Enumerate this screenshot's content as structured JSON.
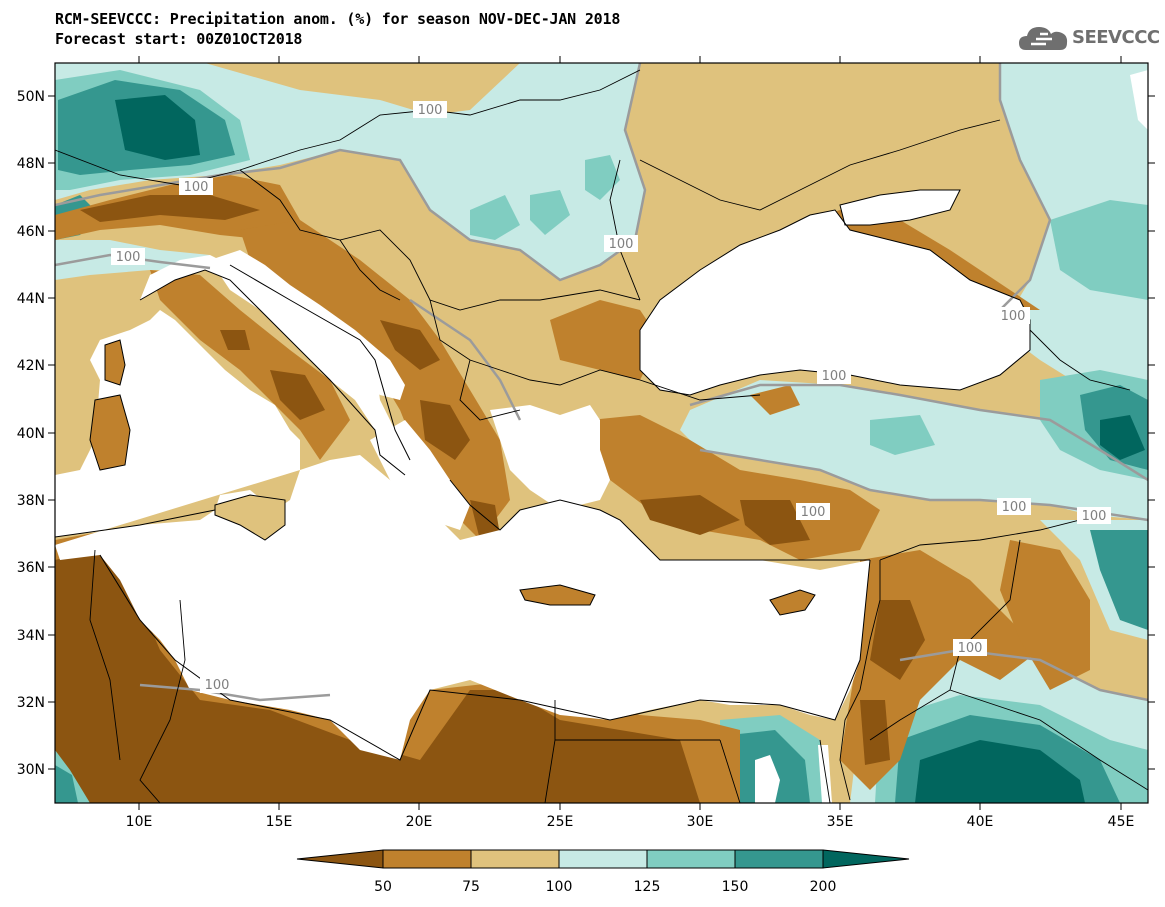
{
  "title": {
    "line1": "RCM-SEEVCCC: Precipitation anom. (%) for season NOV-DEC-JAN 2018",
    "line2": "Forecast start: 00Z01OCT2018"
  },
  "logo": {
    "text": "SEEVCCC",
    "icon": "cloud-icon"
  },
  "map": {
    "lon_range": [
      7,
      46
    ],
    "lat_range": [
      29,
      51
    ],
    "lat_ticks": [
      "50N",
      "48N",
      "46N",
      "44N",
      "42N",
      "40N",
      "38N",
      "36N",
      "34N",
      "32N",
      "30N"
    ],
    "lon_ticks": [
      "10E",
      "15E",
      "20E",
      "25E",
      "30E",
      "35E",
      "40E",
      "45E"
    ],
    "contour_labels": [
      "100",
      "100",
      "100",
      "100",
      "100",
      "100",
      "100",
      "100",
      "100",
      "100",
      "100"
    ],
    "colors": {
      "below_50": "#8c5511",
      "c50_75": "#bf812d",
      "c75_100": "#dfc27d",
      "c100_125": "#c7eae5",
      "c125_150": "#80cdc1",
      "c150_200": "#35978f",
      "above_200": "#01665e",
      "sea": "#ffffff"
    }
  },
  "colorbar": {
    "labels": [
      "50",
      "75",
      "100",
      "125",
      "150",
      "200"
    ],
    "colors": [
      "#8c5511",
      "#bf812d",
      "#dfc27d",
      "#c7eae5",
      "#80cdc1",
      "#35978f",
      "#01665e"
    ]
  }
}
